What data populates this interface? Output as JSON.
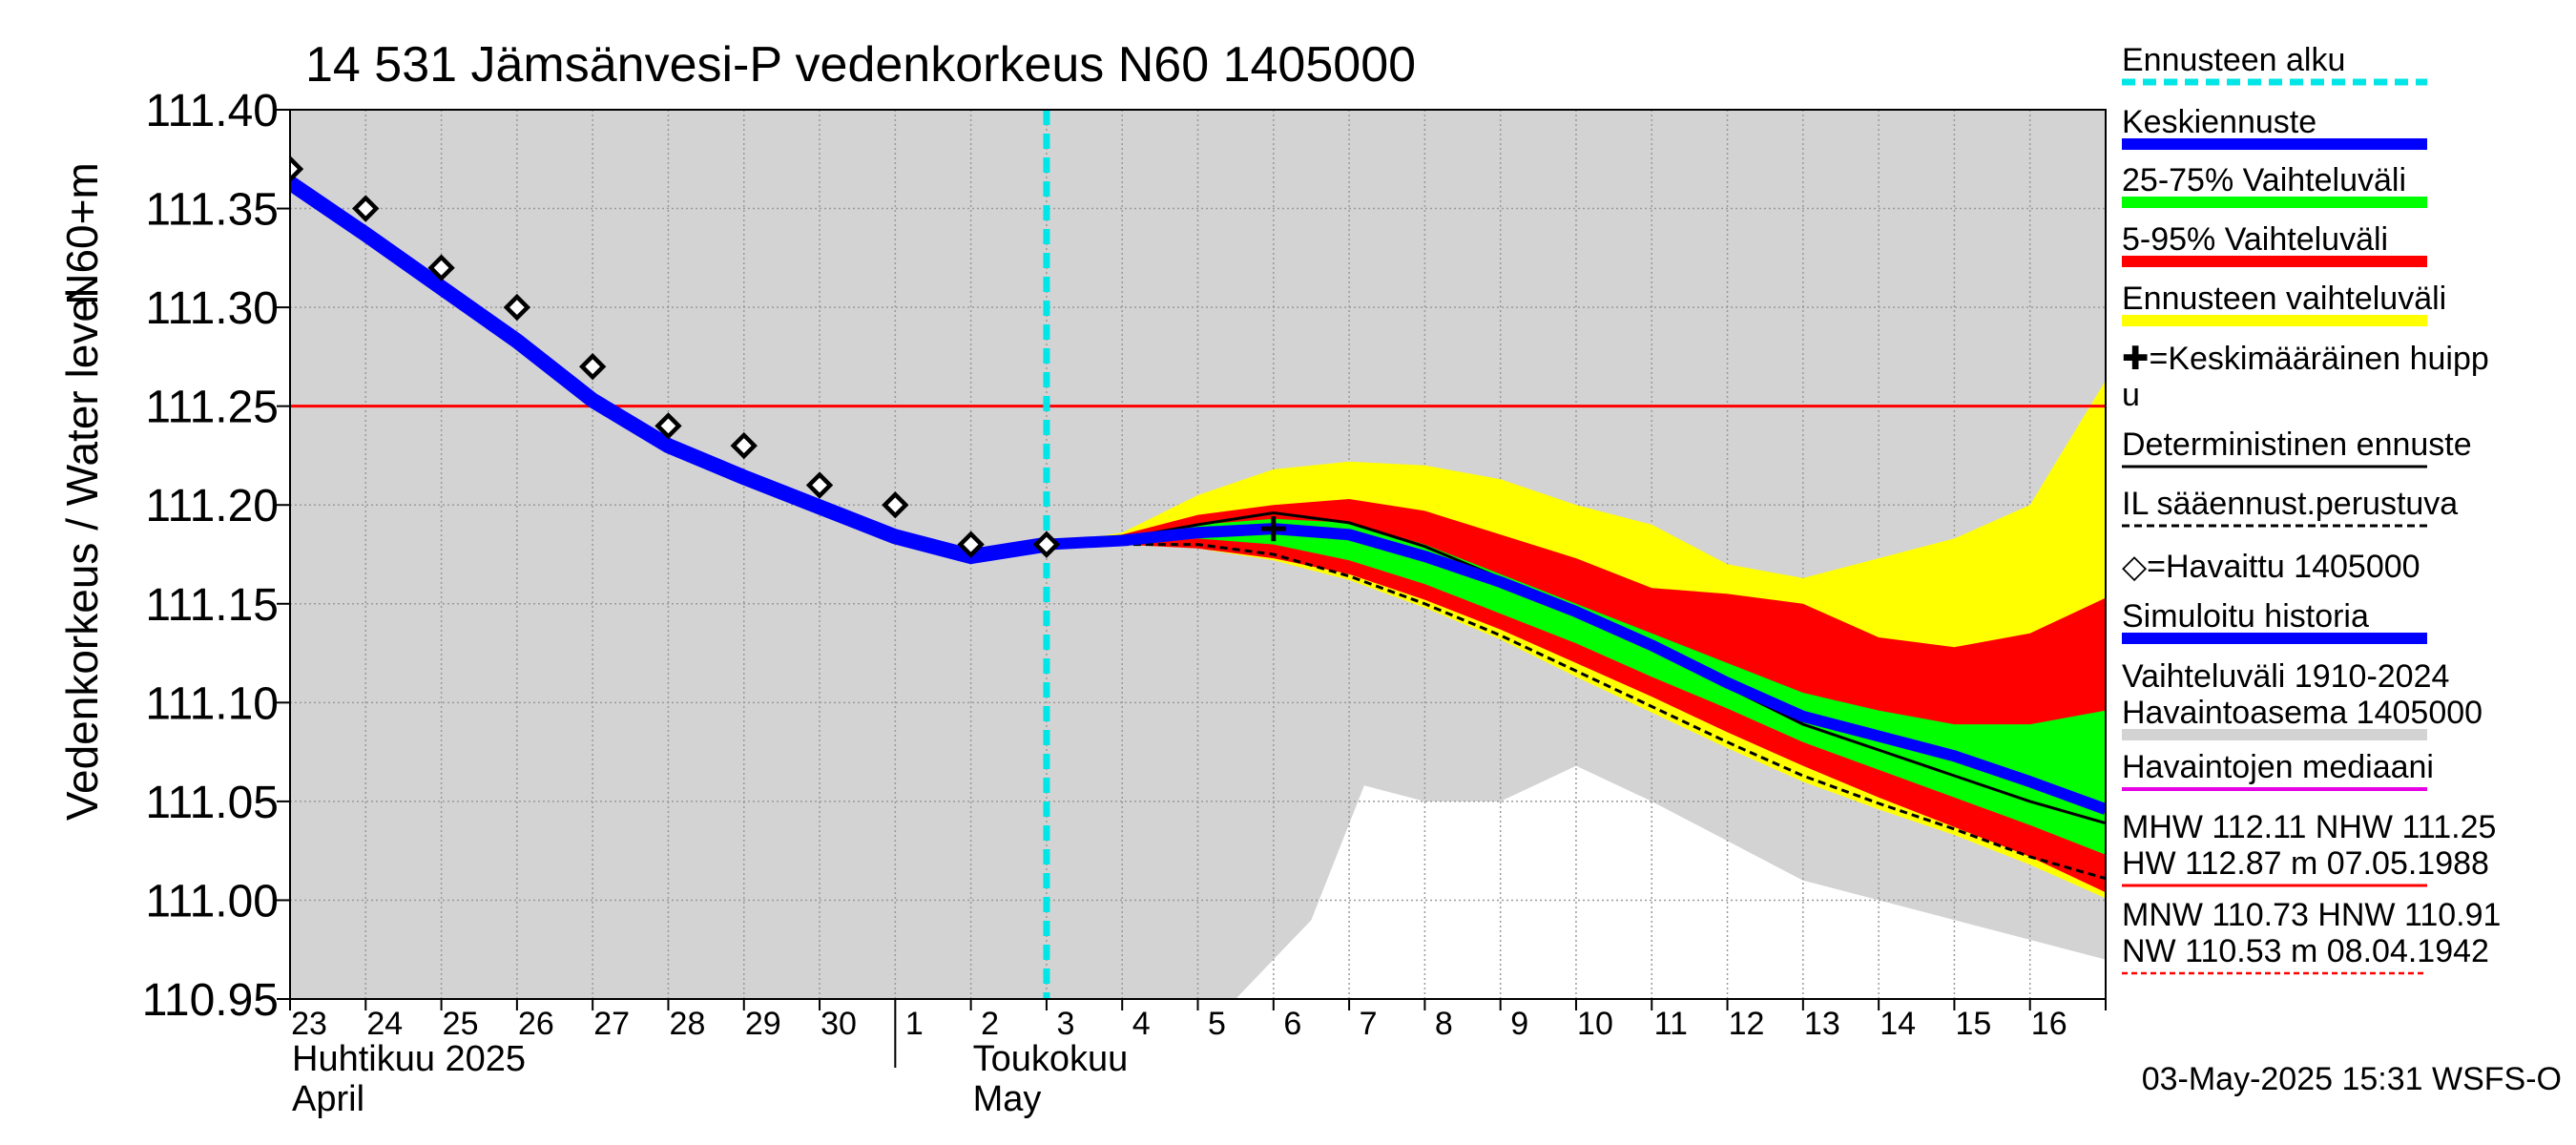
{
  "chart_data": {
    "type": "area",
    "title": "14 531 Jämsänvesi-P vedenkorkeus N60 1405000",
    "ylabel_main": "Vedenkorkeus / Water level",
    "ylabel_unit": "N60+m",
    "ylim": [
      110.95,
      111.4
    ],
    "yticks": [
      "111.40",
      "111.35",
      "111.30",
      "111.25",
      "111.20",
      "111.15",
      "111.10",
      "111.05",
      "111.00",
      "110.95"
    ],
    "ytick_values": [
      111.4,
      111.35,
      111.3,
      111.25,
      111.2,
      111.15,
      111.1,
      111.05,
      111.0,
      110.95
    ],
    "xlim": [
      0,
      24
    ],
    "day_labels": [
      "23",
      "24",
      "25",
      "26",
      "27",
      "28",
      "29",
      "30",
      "1",
      "2",
      "3",
      "4",
      "5",
      "6",
      "7",
      "8",
      "9",
      "10",
      "11",
      "12",
      "13",
      "14",
      "15",
      "16"
    ],
    "month_labels": [
      {
        "fi": "Huhtikuu  2025",
        "en": "April",
        "at": 0
      },
      {
        "fi": "Toukokuu",
        "en": "May",
        "at": 9
      }
    ],
    "grid": true,
    "forecast_start_x": 10,
    "nhw_level": 111.25,
    "colors": {
      "history_range": "#d3d3d3",
      "forecast_start": "#00e5e5",
      "mean_forecast": "#0000ff",
      "range_25_75": "#00ff00",
      "range_5_95": "#ff0000",
      "forecast_range": "#ffff00",
      "deterministic": "#000000",
      "median": "#e600e6",
      "nhw_line": "#ff0000",
      "hnw_line": "#ff0000"
    },
    "history_range": {
      "x": [
        0,
        10,
        12.5,
        13.5,
        14.2,
        15,
        16,
        17,
        18,
        19,
        20,
        21,
        22,
        23,
        24
      ],
      "upper": [
        111.4,
        111.4,
        111.4,
        111.4,
        111.4,
        111.4,
        111.4,
        111.4,
        111.4,
        111.4,
        111.4,
        111.4,
        111.4,
        111.4,
        111.4
      ],
      "lower": [
        110.95,
        110.95,
        110.95,
        110.99,
        111.058,
        111.05,
        111.05,
        111.068,
        111.05,
        111.03,
        111.01,
        111.0,
        110.99,
        110.98,
        110.97
      ]
    },
    "forecast_range": {
      "x": [
        10,
        11,
        12,
        13,
        14,
        15,
        16,
        17,
        18,
        19,
        20,
        21,
        22,
        23,
        24
      ],
      "upper": [
        111.18,
        111.186,
        111.205,
        111.218,
        111.222,
        111.22,
        111.213,
        111.2,
        111.19,
        111.17,
        111.163,
        111.173,
        111.183,
        111.2,
        111.263
      ],
      "lower": [
        111.18,
        111.18,
        111.178,
        111.172,
        111.162,
        111.148,
        111.132,
        111.113,
        111.095,
        111.077,
        111.06,
        111.046,
        111.033,
        111.018,
        111.001
      ]
    },
    "range_5_95": {
      "x": [
        10,
        11,
        12,
        13,
        14,
        15,
        16,
        17,
        18,
        19,
        20,
        21,
        22,
        23,
        24
      ],
      "upper": [
        111.18,
        111.185,
        111.195,
        111.2,
        111.203,
        111.197,
        111.185,
        111.173,
        111.158,
        111.155,
        111.15,
        111.133,
        111.128,
        111.135,
        111.153
      ],
      "lower": [
        111.18,
        111.18,
        111.178,
        111.173,
        111.165,
        111.152,
        111.137,
        111.12,
        111.103,
        111.085,
        111.068,
        111.052,
        111.037,
        111.022,
        111.004
      ]
    },
    "range_25_75": {
      "x": [
        10,
        11,
        12,
        13,
        14,
        15,
        16,
        17,
        18,
        19,
        20,
        21,
        22,
        23,
        24
      ],
      "upper": [
        111.18,
        111.183,
        111.19,
        111.193,
        111.191,
        111.18,
        111.165,
        111.15,
        111.135,
        111.12,
        111.105,
        111.096,
        111.089,
        111.089,
        111.096
      ],
      "lower": [
        111.18,
        111.181,
        111.183,
        111.18,
        111.172,
        111.16,
        111.145,
        111.13,
        111.113,
        111.097,
        111.08,
        111.066,
        111.052,
        111.038,
        111.023
      ]
    },
    "series": [
      {
        "name": "Simuloitu historia",
        "x": [
          0,
          1,
          2,
          3,
          4,
          5,
          6,
          7,
          8,
          9,
          10
        ],
        "y": [
          111.363,
          111.337,
          111.31,
          111.283,
          111.253,
          111.23,
          111.214,
          111.199,
          111.184,
          111.174,
          111.18
        ]
      },
      {
        "name": "Keskiennuste",
        "x": [
          10,
          11,
          12,
          13,
          14,
          15,
          16,
          17,
          18,
          19,
          20,
          21,
          22,
          23,
          24
        ],
        "y": [
          111.18,
          111.182,
          111.186,
          111.188,
          111.185,
          111.174,
          111.161,
          111.146,
          111.129,
          111.11,
          111.093,
          111.083,
          111.073,
          111.06,
          111.046
        ]
      },
      {
        "name": "Deterministinen ennuste",
        "x": [
          10,
          11,
          12,
          13,
          14,
          15,
          16,
          17,
          18,
          19,
          20,
          21,
          22,
          23,
          24
        ],
        "y": [
          111.18,
          111.183,
          111.19,
          111.196,
          111.191,
          111.179,
          111.163,
          111.146,
          111.127,
          111.108,
          111.089,
          111.076,
          111.063,
          111.05,
          111.039
        ]
      },
      {
        "name": "IL sääennust.perustuva",
        "x": [
          10,
          11,
          12,
          13,
          14,
          15,
          16,
          17,
          18,
          19,
          20,
          21,
          22,
          23,
          24
        ],
        "y": [
          111.18,
          111.18,
          111.18,
          111.175,
          111.164,
          111.15,
          111.134,
          111.116,
          111.098,
          111.08,
          111.063,
          111.049,
          111.036,
          111.022,
          111.011
        ]
      }
    ],
    "observed": {
      "name": "Havaittu 1405000",
      "x": [
        0,
        1,
        2,
        3,
        4,
        5,
        6,
        7,
        8,
        9,
        10
      ],
      "y": [
        111.37,
        111.35,
        111.32,
        111.3,
        111.27,
        111.24,
        111.23,
        111.21,
        111.2,
        111.18,
        111.18
      ]
    },
    "mean_peak": {
      "x": 13,
      "y": 111.188
    },
    "legend": [
      {
        "label": "Ennusteen alku",
        "style": "dashed-cyan"
      },
      {
        "label": "Keskiennuste",
        "style": "blue"
      },
      {
        "label": "25-75% Vaihteluväli",
        "style": "green"
      },
      {
        "label": "5-95% Vaihteluväli",
        "style": "red"
      },
      {
        "label": "Ennusteen vaihteluväli",
        "style": "yellow"
      },
      {
        "label": "✚=Keskimääräinen huipp",
        "label2": "u",
        "style": "none"
      },
      {
        "label": "Deterministinen ennuste",
        "style": "black"
      },
      {
        "label": "IL sääennust.perustuva",
        "style": "dashed-black"
      },
      {
        "label": "◇=Havaittu 1405000",
        "style": "none"
      },
      {
        "label": "Simuloitu historia",
        "style": "blue"
      },
      {
        "label": "Vaihteluväli 1910-2024",
        "label2": " Havaintoasema 1405000",
        "style": "gray"
      },
      {
        "label": "Havaintojen mediaani",
        "style": "magenta"
      },
      {
        "label": "MHW 112.11 NHW 111.25",
        "label2": "HW 112.87 m 07.05.1988",
        "style": "red"
      },
      {
        "label": "MNW 110.73 HNW 110.91",
        "label2": "NW 110.53 m 08.04.1942",
        "style": "dashed-red"
      }
    ],
    "timestamp": "03-May-2025 15:31 WSFS-O"
  }
}
